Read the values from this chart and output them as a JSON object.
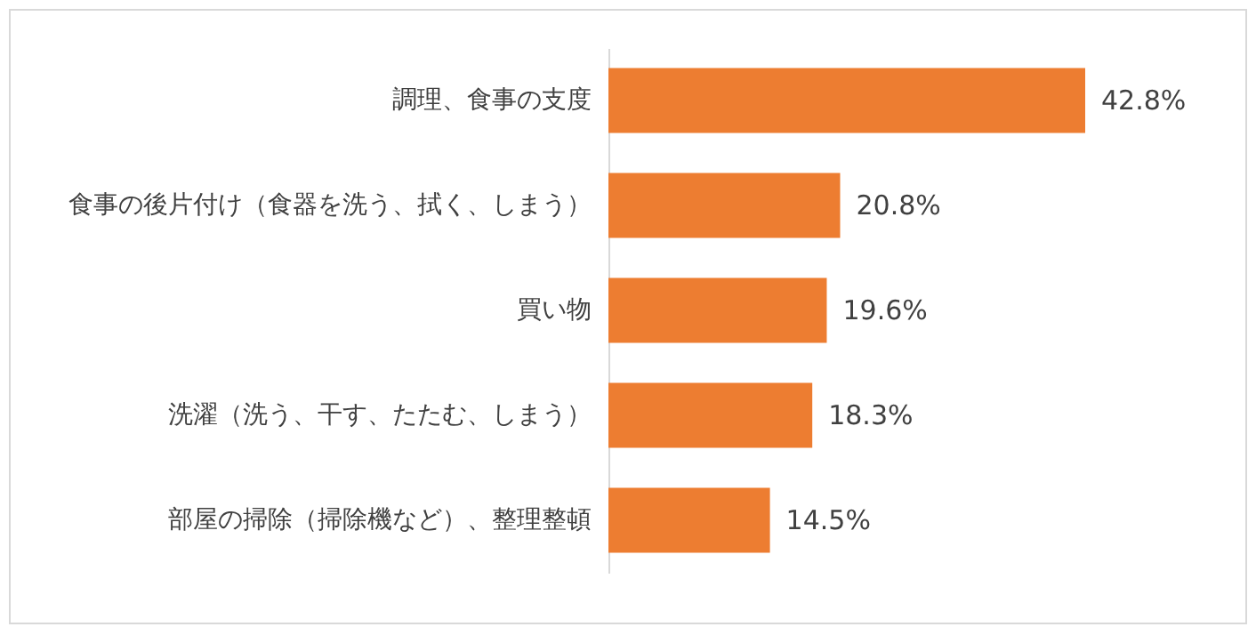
{
  "chart_data": {
    "type": "bar",
    "orientation": "horizontal",
    "categories": [
      "調理、食事の支度",
      "食事の後片付け（食器を洗う、拭く、しまう）",
      "買い物",
      "洗濯（洗う、干す、たたむ、しまう）",
      "部屋の掃除（掃除機など）、整理整頓"
    ],
    "values": [
      42.8,
      20.8,
      19.6,
      18.3,
      14.5
    ],
    "value_labels": [
      "42.8%",
      "20.8%",
      "19.6%",
      "18.3%",
      "14.5%"
    ],
    "color": "#ed7d31"
  }
}
